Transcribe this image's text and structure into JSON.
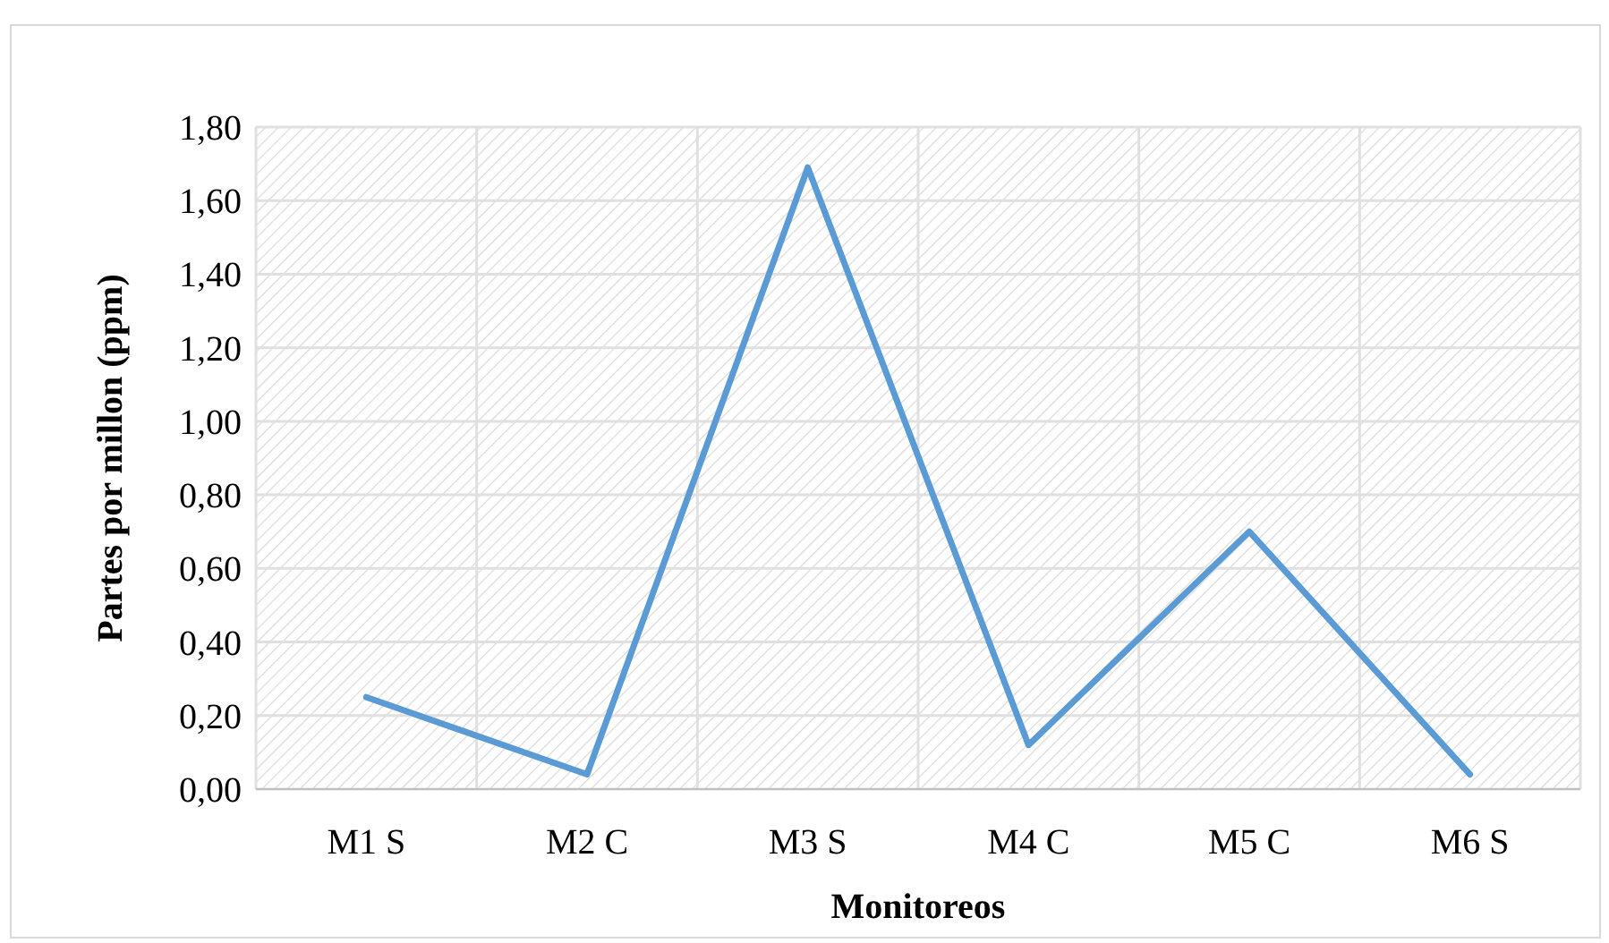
{
  "chart_data": {
    "type": "line",
    "xlabel": "Monitoreos",
    "ylabel": "Partes por millon (ppm)",
    "categories": [
      "M1 S",
      "M2 C",
      "M3 S",
      "M4 C",
      "M5 C",
      "M6 S"
    ],
    "series": [
      {
        "color": "#5b9bd5",
        "values": [
          0.25,
          0.04,
          1.69,
          0.12,
          0.7,
          0.04
        ]
      }
    ],
    "ylim": [
      0,
      1.8
    ],
    "yticks": [
      {
        "value": 0,
        "label": "0,00"
      },
      {
        "value": 0.2,
        "label": "0,20"
      },
      {
        "value": 0.4,
        "label": "0,40"
      },
      {
        "value": 0.6,
        "label": "0,60"
      },
      {
        "value": 0.8,
        "label": "0,80"
      },
      {
        "value": 1.0,
        "label": "1,00"
      },
      {
        "value": 1.2,
        "label": "1,20"
      },
      {
        "value": 1.4,
        "label": "1,40"
      },
      {
        "value": 1.6,
        "label": "1,60"
      },
      {
        "value": 1.8,
        "label": "1,80"
      }
    ],
    "grid": true,
    "marker": "none",
    "line_style": "solid"
  }
}
